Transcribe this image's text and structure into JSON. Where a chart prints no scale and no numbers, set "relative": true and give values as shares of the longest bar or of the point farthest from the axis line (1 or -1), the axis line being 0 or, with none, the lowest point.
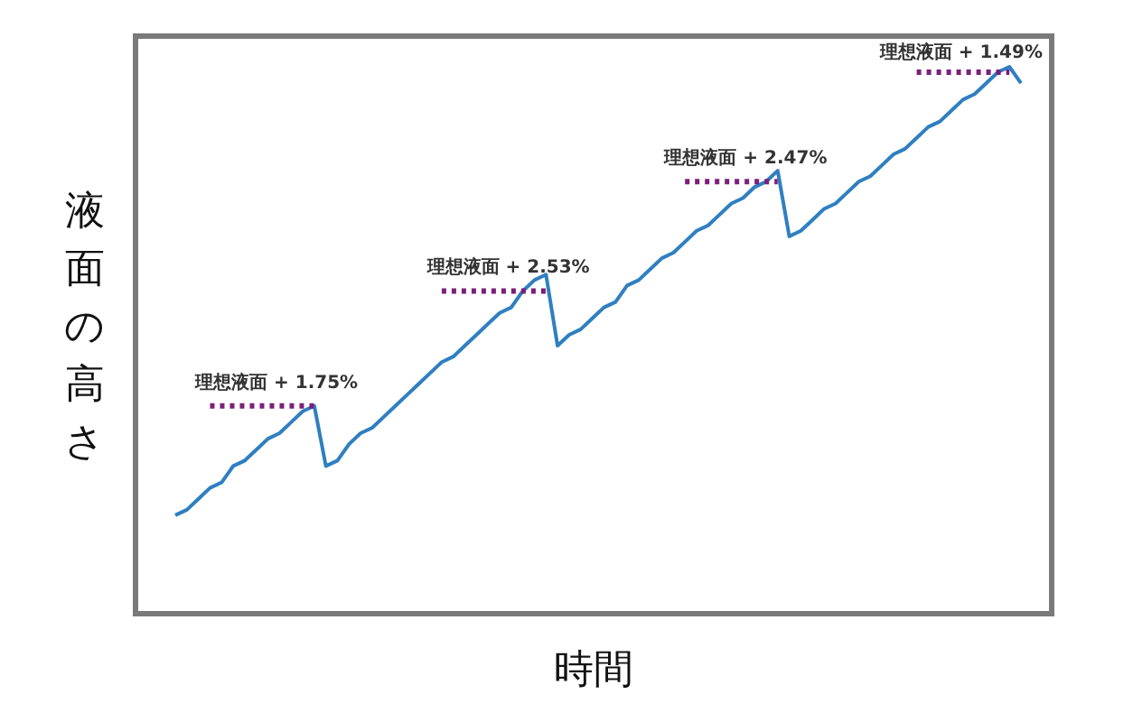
{
  "chart_data": {
    "type": "line",
    "relative": true,
    "xlabel": "時間",
    "ylabel": "液面の高さ",
    "categories": [
      null,
      null,
      null,
      null,
      null,
      null,
      null,
      null,
      null,
      null,
      null,
      null,
      null,
      null,
      null,
      null,
      null,
      null,
      null,
      null,
      null,
      null,
      null,
      null,
      null,
      null,
      null,
      null,
      null,
      null,
      null,
      null,
      null,
      null,
      null,
      null,
      null,
      null,
      null,
      null,
      null,
      null,
      null,
      null,
      null,
      null,
      null,
      null,
      null,
      null,
      null,
      null,
      null,
      null,
      null,
      null,
      null,
      null,
      null,
      null,
      null,
      null,
      null,
      null,
      null,
      null,
      null,
      null,
      null,
      null,
      null,
      null,
      null,
      null
    ],
    "series": [
      {
        "color": "#2f7fc1",
        "line_style": "solid",
        "values": [
          0.18,
          0.19,
          0.21,
          0.23,
          0.24,
          0.27,
          0.28,
          0.3,
          0.32,
          0.33,
          0.35,
          0.37,
          0.38,
          0.27,
          0.28,
          0.31,
          0.33,
          0.34,
          0.36,
          0.38,
          0.4,
          0.42,
          0.44,
          0.46,
          0.47,
          0.49,
          0.51,
          0.53,
          0.55,
          0.56,
          0.59,
          0.61,
          0.62,
          0.49,
          0.51,
          0.52,
          0.54,
          0.56,
          0.57,
          0.6,
          0.61,
          0.63,
          0.65,
          0.66,
          0.68,
          0.7,
          0.71,
          0.73,
          0.75,
          0.76,
          0.78,
          0.79,
          0.81,
          0.69,
          0.7,
          0.72,
          0.74,
          0.75,
          0.77,
          0.79,
          0.8,
          0.82,
          0.84,
          0.85,
          0.87,
          0.89,
          0.9,
          0.92,
          0.94,
          0.95,
          0.97,
          0.99,
          1.0,
          0.97
        ]
      },
      {
        "color": "#7b1f7b",
        "line_style": "dotted",
        "values": [
          null,
          null,
          null,
          0.38,
          0.38,
          0.38,
          0.38,
          0.38,
          0.38,
          0.38,
          0.38,
          0.38,
          0.38,
          null,
          null,
          null,
          null,
          null,
          null,
          null,
          null,
          null,
          null,
          null,
          null,
          null,
          null,
          null,
          null,
          null,
          null,
          null,
          null,
          null,
          null,
          null,
          null,
          null,
          null,
          null,
          null,
          null,
          null,
          null,
          null,
          null,
          null,
          null,
          null,
          null,
          null,
          null,
          null,
          null,
          null,
          null,
          null,
          null,
          null,
          null,
          null,
          null,
          null,
          null,
          null,
          null,
          null,
          null,
          null,
          null,
          null,
          null,
          null,
          null
        ]
      },
      {
        "color": "#7b1f7b",
        "line_style": "dotted",
        "values": [
          null,
          null,
          null,
          null,
          null,
          null,
          null,
          null,
          null,
          null,
          null,
          null,
          null,
          null,
          null,
          null,
          null,
          null,
          null,
          null,
          null,
          null,
          null,
          0.59,
          0.59,
          0.59,
          0.59,
          0.59,
          0.59,
          0.59,
          0.59,
          0.59,
          0.59,
          null,
          null,
          null,
          null,
          null,
          null,
          null,
          null,
          null,
          null,
          null,
          null,
          null,
          null,
          null,
          null,
          null,
          null,
          null,
          null,
          null,
          null,
          null,
          null,
          null,
          null,
          null,
          null,
          null,
          null,
          null,
          null,
          null,
          null,
          null,
          null,
          null,
          null,
          null,
          null,
          null
        ]
      },
      {
        "color": "#7b1f7b",
        "line_style": "dotted",
        "values": [
          null,
          null,
          null,
          null,
          null,
          null,
          null,
          null,
          null,
          null,
          null,
          null,
          null,
          null,
          null,
          null,
          null,
          null,
          null,
          null,
          null,
          null,
          null,
          null,
          null,
          null,
          null,
          null,
          null,
          null,
          null,
          null,
          null,
          null,
          null,
          null,
          null,
          null,
          null,
          null,
          null,
          null,
          null,
          null,
          0.79,
          0.79,
          0.79,
          0.79,
          0.79,
          0.79,
          0.79,
          0.79,
          0.79,
          null,
          null,
          null,
          null,
          null,
          null,
          null,
          null,
          null,
          null,
          null,
          null,
          null,
          null,
          null,
          null,
          null,
          null,
          null,
          null,
          null
        ]
      },
      {
        "color": "#7b1f7b",
        "line_style": "dotted",
        "values": [
          null,
          null,
          null,
          null,
          null,
          null,
          null,
          null,
          null,
          null,
          null,
          null,
          null,
          null,
          null,
          null,
          null,
          null,
          null,
          null,
          null,
          null,
          null,
          null,
          null,
          null,
          null,
          null,
          null,
          null,
          null,
          null,
          null,
          null,
          null,
          null,
          null,
          null,
          null,
          null,
          null,
          null,
          null,
          null,
          null,
          null,
          null,
          null,
          null,
          null,
          null,
          null,
          null,
          null,
          null,
          null,
          null,
          null,
          null,
          null,
          null,
          null,
          null,
          null,
          0.99,
          0.99,
          0.99,
          0.99,
          0.99,
          0.99,
          0.99,
          0.99,
          0.99,
          null
        ]
      }
    ],
    "annotations": [
      "理想液面 + 1.75%",
      "理想液面 + 2.53%",
      "理想液面 + 2.47%",
      "理想液面 + 1.49%"
    ]
  }
}
